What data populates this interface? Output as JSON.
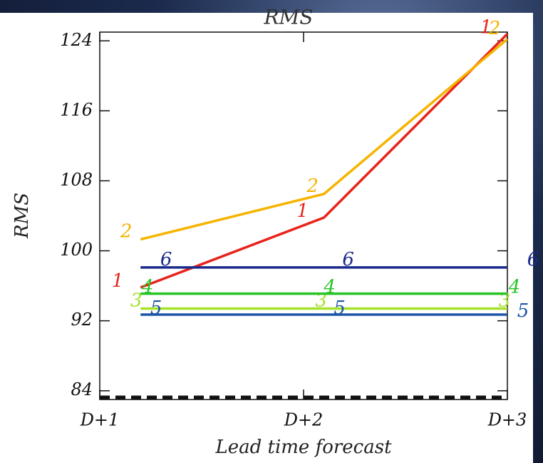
{
  "chart_data": {
    "type": "line",
    "title": "RMS",
    "x_label": "Lead time forecast",
    "y_label": "RMS",
    "x": [
      1.2,
      2.1,
      3.0
    ],
    "xlim": [
      1,
      3
    ],
    "xticks": [
      {
        "value": 1,
        "label": "D+1"
      },
      {
        "value": 2,
        "label": "D+2"
      },
      {
        "value": 3,
        "label": "D+3"
      }
    ],
    "ylim": [
      83,
      125
    ],
    "yticks": [
      84,
      92,
      100,
      108,
      116,
      124
    ],
    "series": [
      {
        "name": "1",
        "color": "#e8231a",
        "values": [
          95.8,
          103.8,
          124.8
        ]
      },
      {
        "name": "2",
        "color": "#f5b400",
        "values": [
          101.3,
          106.5,
          124.2
        ]
      },
      {
        "name": "3",
        "color": "#a6e22a",
        "values": [
          93.4,
          93.4,
          93.4
        ]
      },
      {
        "name": "4",
        "color": "#27c427",
        "values": [
          95.1,
          95.1,
          95.1
        ]
      },
      {
        "name": "5",
        "color": "#1f55a8",
        "values": [
          92.7,
          92.7,
          92.7
        ]
      },
      {
        "name": "6",
        "color": "#1a2a8a",
        "values": [
          98.1,
          98.1,
          98.1
        ]
      }
    ]
  }
}
